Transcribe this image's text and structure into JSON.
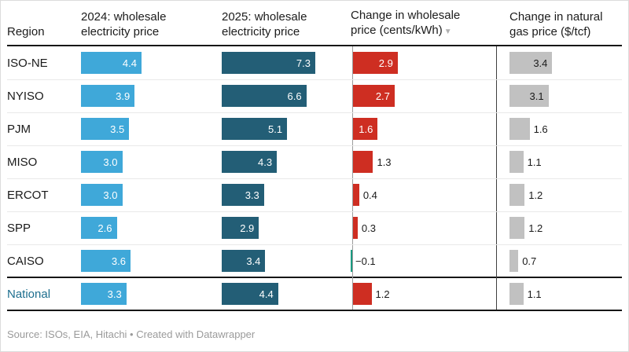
{
  "header": {
    "region_label": "Region",
    "columns": [
      {
        "id": "wholesale_2024",
        "label": "2024: wholesale electricity price"
      },
      {
        "id": "wholesale_2025",
        "label": "2025: wholesale electricity price"
      },
      {
        "id": "change_wholesale",
        "label": "Change in wholesale price (cents/kWh)",
        "sort_icon": "▼",
        "sort_direction": "descending"
      },
      {
        "id": "change_gas",
        "label": "Change in natural gas price ($/tcf)"
      }
    ]
  },
  "chart_data": {
    "type": "table",
    "title": "",
    "columns": [
      "Region",
      "2024: wholesale electricity price",
      "2025: wholesale electricity price",
      "Change in wholesale price (cents/kWh)",
      "Change in natural gas price ($/tcf)"
    ],
    "sort": {
      "column": "Change in wholesale price (cents/kWh)",
      "direction": "descending"
    },
    "rows": [
      {
        "region": "ISO-NE",
        "wholesale_2024": 4.4,
        "wholesale_2025": 7.3,
        "change_wholesale": 2.9,
        "change_gas": 3.4,
        "is_total": false
      },
      {
        "region": "NYISO",
        "wholesale_2024": 3.9,
        "wholesale_2025": 6.6,
        "change_wholesale": 2.7,
        "change_gas": 3.1,
        "is_total": false
      },
      {
        "region": "PJM",
        "wholesale_2024": 3.5,
        "wholesale_2025": 5.1,
        "change_wholesale": 1.6,
        "change_gas": 1.6,
        "is_total": false
      },
      {
        "region": "MISO",
        "wholesale_2024": 3.0,
        "wholesale_2025": 4.3,
        "change_wholesale": 1.3,
        "change_gas": 1.1,
        "is_total": false
      },
      {
        "region": "ERCOT",
        "wholesale_2024": 3.0,
        "wholesale_2025": 3.3,
        "change_wholesale": 0.4,
        "change_gas": 1.2,
        "is_total": false
      },
      {
        "region": "SPP",
        "wholesale_2024": 2.6,
        "wholesale_2025": 2.9,
        "change_wholesale": 0.3,
        "change_gas": 1.2,
        "is_total": false
      },
      {
        "region": "CAISO",
        "wholesale_2024": 3.6,
        "wholesale_2025": 3.4,
        "change_wholesale": -0.1,
        "change_gas": 0.7,
        "is_total": false
      },
      {
        "region": "National",
        "wholesale_2024": 3.3,
        "wholesale_2025": 4.4,
        "change_wholesale": 1.2,
        "change_gas": 1.1,
        "is_total": true
      }
    ]
  },
  "colors": {
    "bar_2024": "#3fa8d9",
    "bar_2025": "#235e76",
    "bar_increase": "#ce2e22",
    "bar_decrease": "#1a9b81",
    "bar_gas": "#c1c1c1",
    "text_dark": "#1a1a1a",
    "text_light": "#ffffff",
    "total_label": "#1d6e8e"
  },
  "footer": {
    "source": "Source: ISOs, EIA, Hitachi • Created with Datawrapper"
  }
}
